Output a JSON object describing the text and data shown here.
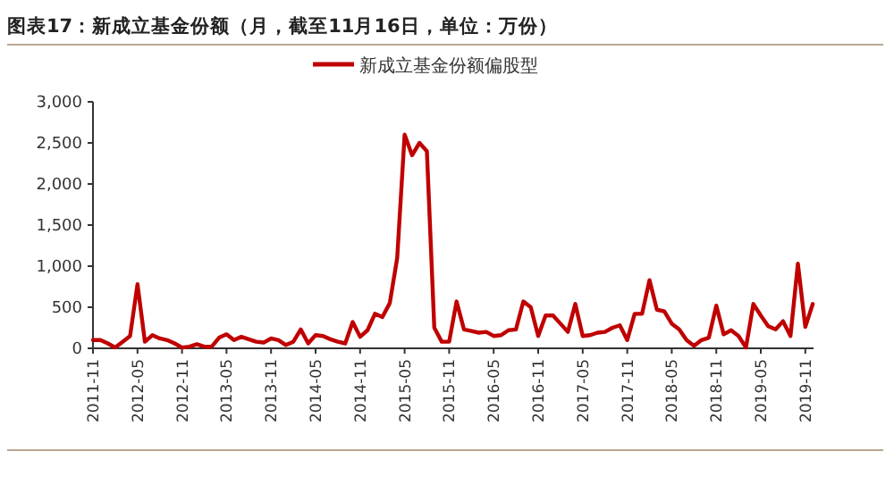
{
  "chart_data": {
    "type": "line",
    "title": "图表17：新成立基金份额（月，截至11月16日，单位：万份）",
    "categories": [
      "2011-11",
      null,
      null,
      null,
      null,
      null,
      "2012-05",
      null,
      null,
      null,
      null,
      null,
      "2012-11",
      null,
      null,
      null,
      null,
      null,
      "2013-05",
      null,
      null,
      null,
      null,
      null,
      "2013-11",
      null,
      null,
      null,
      null,
      null,
      "2014-05",
      null,
      null,
      null,
      null,
      null,
      "2014-11",
      null,
      null,
      null,
      null,
      null,
      "2015-05",
      null,
      null,
      null,
      null,
      null,
      "2015-11",
      null,
      null,
      null,
      null,
      null,
      "2016-05",
      null,
      null,
      null,
      null,
      null,
      "2016-11",
      null,
      null,
      null,
      null,
      null,
      "2017-05",
      null,
      null,
      null,
      null,
      null,
      "2017-11",
      null,
      null,
      null,
      null,
      null,
      "2018-05",
      null,
      null,
      null,
      null,
      null,
      "2018-11",
      null,
      null,
      null,
      null,
      null,
      "2019-05",
      null,
      null,
      null,
      null,
      null,
      "2019-11",
      null
    ],
    "series": [
      {
        "name": "新成立基金份额偏股型",
        "color": "#c00000",
        "values": [
          100,
          100,
          60,
          10,
          80,
          150,
          780,
          80,
          160,
          120,
          100,
          60,
          10,
          20,
          50,
          20,
          20,
          130,
          170,
          100,
          140,
          110,
          80,
          70,
          120,
          100,
          40,
          80,
          230,
          60,
          160,
          150,
          110,
          80,
          60,
          320,
          140,
          220,
          420,
          380,
          550,
          1100,
          2600,
          2350,
          2500,
          2400,
          250,
          80,
          80,
          570,
          230,
          210,
          190,
          200,
          150,
          160,
          220,
          230,
          570,
          500,
          150,
          400,
          400,
          300,
          200,
          540,
          150,
          160,
          190,
          200,
          250,
          280,
          100,
          420,
          420,
          830,
          470,
          450,
          300,
          230,
          100,
          30,
          100,
          130,
          520,
          170,
          220,
          150,
          10,
          540,
          400,
          270,
          230,
          330,
          150,
          1030,
          260,
          540
        ]
      }
    ],
    "ylim": [
      0,
      3000
    ],
    "yticks": [
      0,
      {
        "value": 500,
        "label": "500"
      },
      {
        "value": 1000,
        "label": "1,000"
      },
      {
        "value": 1500,
        "label": "1,500"
      },
      {
        "value": 2000,
        "label": "2,000"
      },
      {
        "value": 2500,
        "label": "2,500"
      },
      {
        "value": 3000,
        "label": "3,000"
      }
    ],
    "grid": false,
    "legend": "top",
    "marker": "none",
    "line_style": "solid"
  }
}
